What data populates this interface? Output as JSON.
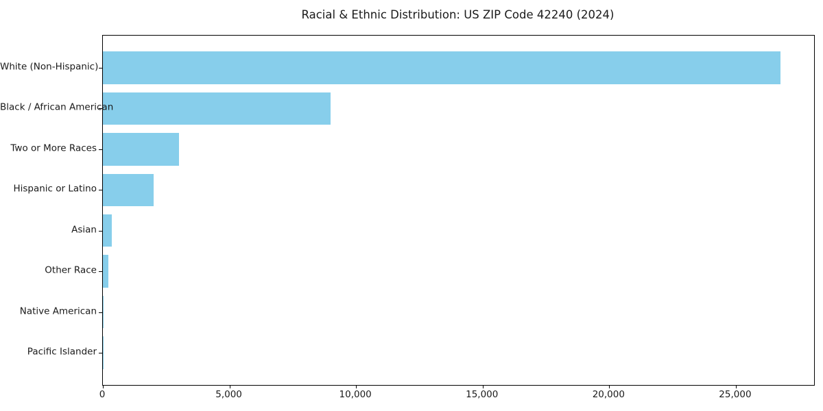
{
  "chart_data": {
    "type": "bar",
    "orientation": "horizontal",
    "title": "Racial & Ethnic Distribution: US ZIP Code 42240 (2024)",
    "categories": [
      "White (Non-Hispanic)",
      "Black / African American",
      "Two or More Races",
      "Hispanic or Latino",
      "Asian",
      "Other Race",
      "Native American",
      "Pacific Islander"
    ],
    "values": [
      26750,
      8990,
      3010,
      2010,
      360,
      230,
      40,
      10
    ],
    "xlabel": "",
    "ylabel": "",
    "xticks": [
      0,
      5000,
      10000,
      15000,
      20000,
      25000
    ],
    "xtick_labels": [
      "0",
      "5,000",
      "10,000",
      "15,000",
      "20,000",
      "25,000"
    ],
    "xlim": [
      0,
      28090
    ],
    "bar_color": "#87CEEB",
    "background_color": "#FFFFFF",
    "text_color": "#1a1a1a",
    "grid": false,
    "legend": null
  }
}
